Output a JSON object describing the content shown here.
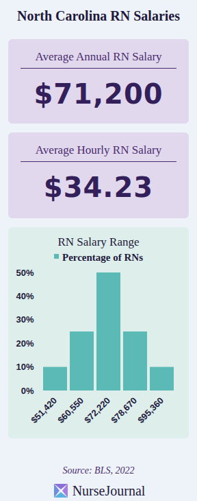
{
  "header": {
    "title": "North Carolina RN Salaries"
  },
  "cards": [
    {
      "label": "Average Annual RN Salary",
      "value": "$71,200"
    },
    {
      "label": "Average Hourly RN Salary",
      "value": "$34.23"
    }
  ],
  "chart_data": {
    "type": "bar",
    "title": "RN Salary Range",
    "categories": [
      "$51,420",
      "$60,550",
      "$72,220",
      "$78,670",
      "$95,360"
    ],
    "series": [
      {
        "name": "Percentage of RNs",
        "color": "#5bbab5",
        "values": [
          10,
          25,
          50,
          25,
          10
        ]
      }
    ],
    "ylim": [
      0,
      50
    ],
    "yticks": [
      {
        "value": 0,
        "label": "0%"
      },
      {
        "value": 10,
        "label": "10%"
      },
      {
        "value": 20,
        "label": "20%"
      },
      {
        "value": 30,
        "label": "30%"
      },
      {
        "value": 40,
        "label": "40%"
      },
      {
        "value": 50,
        "label": "50%"
      }
    ],
    "grid": false,
    "legend": "top"
  },
  "footer": {
    "source": "Source: BLS, 2022",
    "brand": "NurseJournal"
  }
}
